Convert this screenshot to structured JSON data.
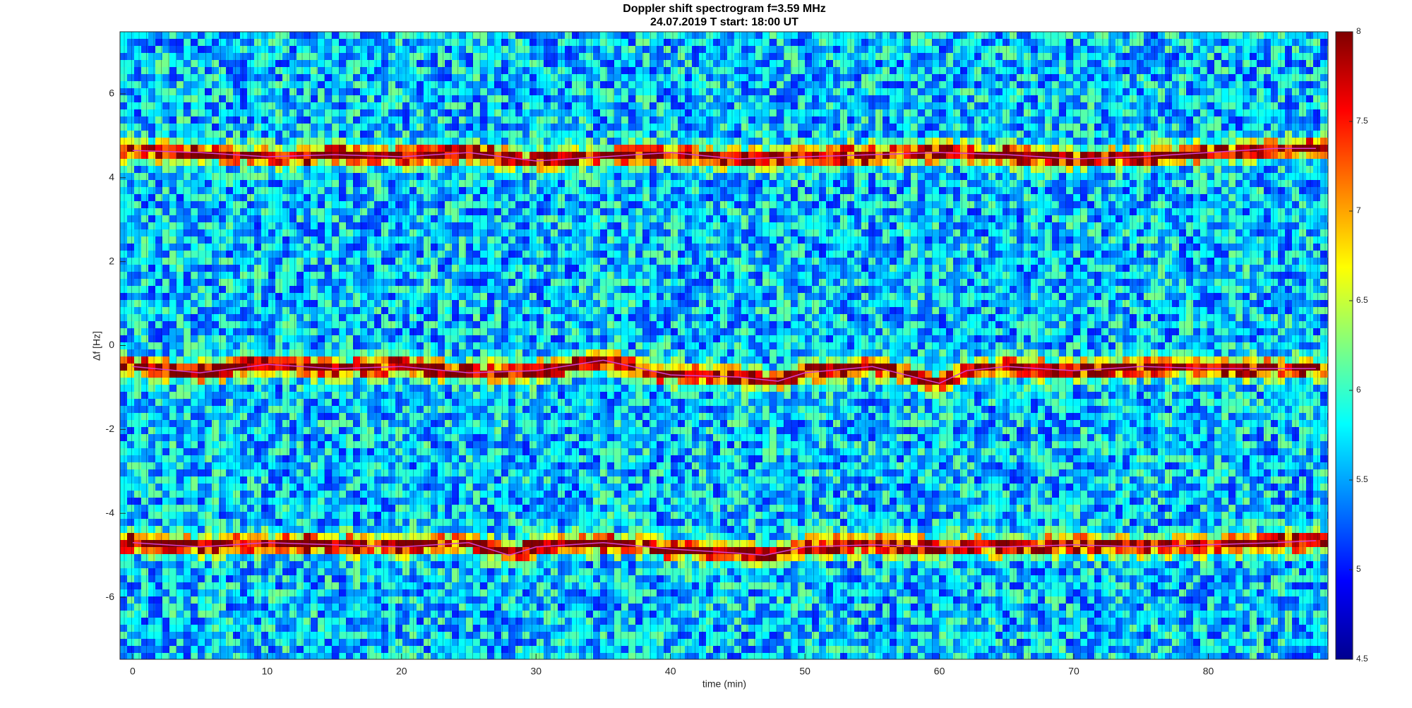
{
  "chart_data": {
    "type": "spectrogram",
    "title": "Doppler shift spectrogram f=3.59 MHz",
    "subtitle": "24.07.2019    T start: 18:00 UT",
    "x_label": "time (min)",
    "y_label": "Δf [Hz]",
    "xlim": [
      -0.94,
      88.9
    ],
    "xticks": [
      0,
      10,
      20,
      30,
      40,
      50,
      60,
      70,
      80
    ],
    "ylim": [
      -7.48,
      7.48
    ],
    "yticks": [
      -6,
      -4,
      -2,
      0,
      2,
      4,
      6
    ],
    "clim": [
      4.5,
      8
    ],
    "cticks": [
      4.5,
      5,
      5.5,
      6,
      6.5,
      7,
      7.5,
      8
    ],
    "colormap": [
      "#00008f",
      "#0000ff",
      "#0080ff",
      "#00ffff",
      "#80ff80",
      "#ffff00",
      "#ff8000",
      "#ff0000",
      "#800000"
    ],
    "series": [
      {
        "color": "#d040d0",
        "x": [
          0,
          5,
          10,
          15,
          20,
          25,
          30,
          35,
          40,
          45,
          50,
          55,
          60,
          65,
          70,
          75,
          80,
          85,
          88
        ],
        "values": [
          4.65,
          4.6,
          4.5,
          4.55,
          4.5,
          4.6,
          4.4,
          4.5,
          4.6,
          4.45,
          4.5,
          4.55,
          4.6,
          4.55,
          4.45,
          4.5,
          4.6,
          4.7,
          4.7
        ]
      },
      {
        "color": "#d040d0",
        "x": [
          0,
          5,
          10,
          15,
          20,
          25,
          30,
          35,
          40,
          45,
          48,
          50,
          55,
          60,
          62,
          65,
          70,
          75,
          80,
          85,
          88
        ],
        "values": [
          -0.5,
          -0.65,
          -0.45,
          -0.55,
          -0.5,
          -0.65,
          -0.6,
          -0.35,
          -0.7,
          -0.75,
          -0.85,
          -0.65,
          -0.5,
          -0.9,
          -0.6,
          -0.5,
          -0.6,
          -0.5,
          -0.55,
          -0.55,
          -0.55
        ]
      },
      {
        "color": "#d040d0",
        "x": [
          0,
          5,
          10,
          15,
          20,
          25,
          28,
          30,
          35,
          40,
          45,
          47,
          50,
          55,
          60,
          65,
          70,
          75,
          80,
          85,
          88
        ],
        "values": [
          -4.7,
          -4.8,
          -4.7,
          -4.75,
          -4.8,
          -4.7,
          -5.0,
          -4.8,
          -4.7,
          -4.85,
          -4.95,
          -5.0,
          -4.8,
          -4.75,
          -4.8,
          -4.8,
          -4.75,
          -4.8,
          -4.75,
          -4.7,
          -4.65
        ]
      }
    ]
  }
}
